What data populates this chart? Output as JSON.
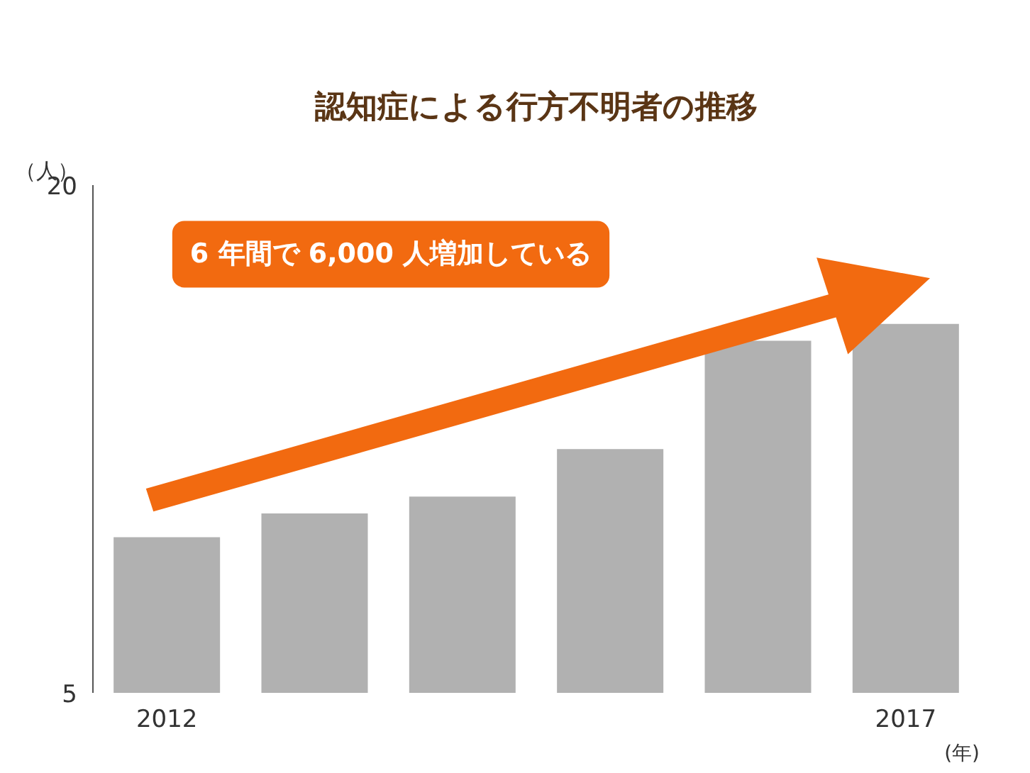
{
  "chart_data": {
    "type": "bar",
    "title": "認知症による行方不明者の推移",
    "ylabel": "（人）",
    "xlabel": "(年)",
    "categories": [
      "2012",
      null,
      null,
      null,
      null,
      "2017"
    ],
    "values": [
      9.6,
      10.3,
      10.8,
      12.2,
      15.4,
      15.9
    ],
    "color": "#b1b1b1",
    "ylim": [
      5,
      20
    ],
    "yticks": [
      5,
      20
    ],
    "grid": false,
    "annotations": [
      "6 年間で 6,000 人増加している"
    ]
  }
}
